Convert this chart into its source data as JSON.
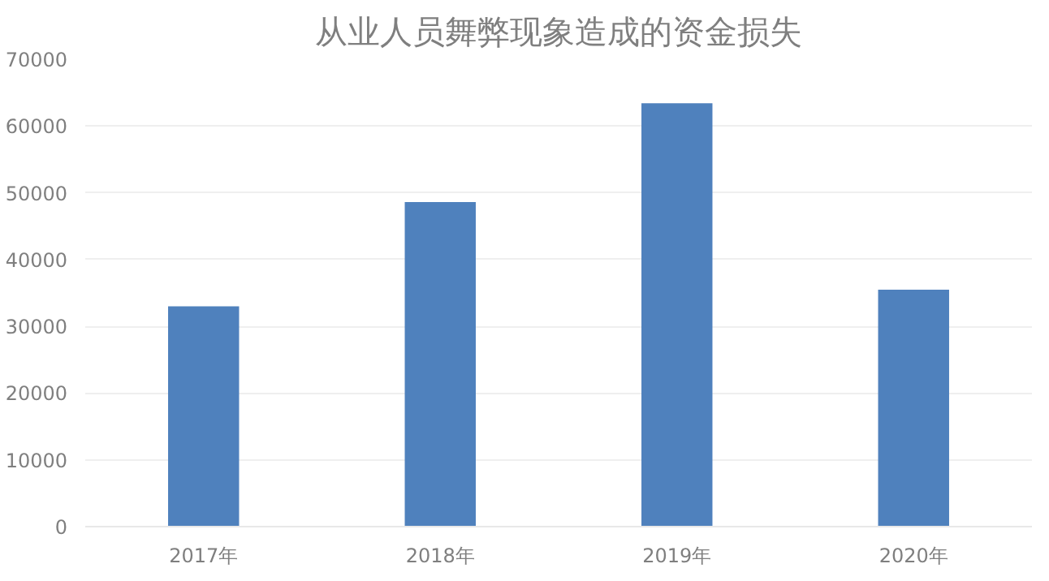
{
  "chart_data": {
    "type": "bar",
    "title": "从业人员舞弊现象造成的资金损失",
    "categories": [
      "2017年",
      "2018年",
      "2019年",
      "2020年"
    ],
    "values": [
      33000,
      48600,
      63400,
      35500
    ],
    "color": "#4f81bd",
    "ylim": [
      0,
      70000
    ],
    "yticks": [
      0,
      10000,
      20000,
      30000,
      40000,
      50000,
      60000,
      70000
    ],
    "grid": "y"
  }
}
